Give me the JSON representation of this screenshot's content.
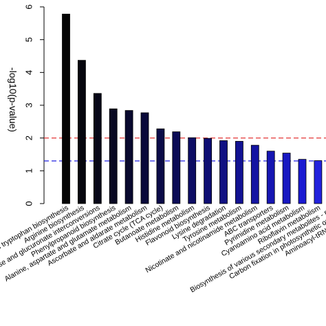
{
  "chart_data": {
    "type": "bar",
    "title": "",
    "xlabel": "",
    "ylabel": "-log10(p-value)",
    "ylim": [
      0,
      6
    ],
    "yticks": [
      0,
      1,
      2,
      3,
      4,
      5,
      6
    ],
    "grid": false,
    "categories": [
      "Phenylalanine, tyrosine and tryptophan biosynthesis",
      "Arginine biosynthesis",
      "Pentose and glucuronate interconversions",
      "Phenylpropanoid biosynthesis",
      "Alanine, aspartate and glutamate metabolism",
      "Ascorbate and aldarate metabolism",
      "Citrate cycle (TCA cycle)",
      "Butanoate metabolism",
      "Histidine metabolism",
      "Flavonoid biosynthesis",
      "Lysine degradation",
      "Tyrosine metabolism",
      "Nicotinate and nicotinamide metabolism",
      "ABC transporters",
      "Pyrimidine metabolism",
      "Cyanoamino acid metabolism",
      "Riboflavin metabolism",
      "Biosynthesis of various secondary metabolites - part",
      "Carbon fixation in photosynthetic organisms",
      "Aminoacyl-tRNA biosynthesis"
    ],
    "values": [
      5.78,
      4.37,
      3.36,
      2.89,
      2.84,
      2.77,
      2.28,
      2.19,
      2.01,
      1.99,
      1.92,
      1.9,
      1.78,
      1.6,
      1.54,
      1.35,
      1.31,
      1.31,
      1.31,
      1.31
    ],
    "bar_colors": [
      "#050505",
      "#06060e",
      "#070718",
      "#080822",
      "#09092e",
      "#0a0a3a",
      "#0b0b48",
      "#0c0c56",
      "#0d0d64",
      "#0e0e72",
      "#101082",
      "#121292",
      "#1414a2",
      "#1616b2",
      "#1818c2",
      "#1a1ad2",
      "#2222dd",
      "#2a2ae6",
      "#3232ee",
      "#3a3af5"
    ],
    "reference_lines": [
      {
        "value": 2,
        "color": "#e02020",
        "style": "dashed"
      },
      {
        "value": 1.3,
        "color": "#2020e0",
        "style": "dashed"
      }
    ]
  }
}
